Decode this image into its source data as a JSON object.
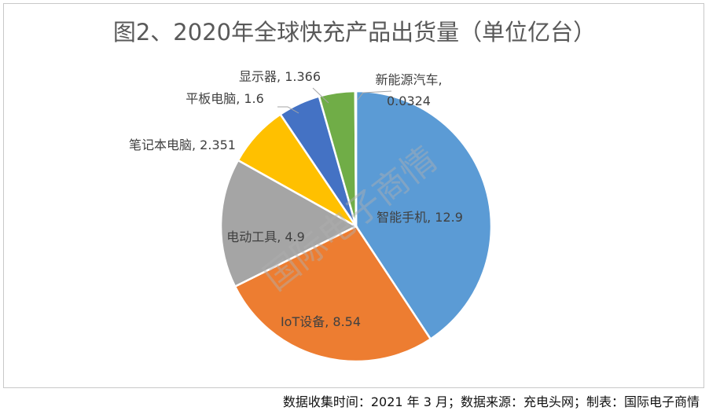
{
  "chart_data": {
    "type": "pie",
    "title": "图2、2020年全球快充产品出货量（单位亿台）",
    "unit": "亿台",
    "slices": [
      {
        "name": "智能手机",
        "value": 12.9,
        "label": "智能手机, 12.9",
        "color": "#5b9bd5"
      },
      {
        "name": "IoT设备",
        "value": 8.54,
        "label": "IoT设备, 8.54",
        "color": "#ed7d31"
      },
      {
        "name": "电动工具",
        "value": 4.9,
        "label": "电动工具, 4.9",
        "color": "#a5a5a5"
      },
      {
        "name": "笔记本电脑",
        "value": 2.351,
        "label": "笔记本电脑, 2.351",
        "color": "#ffc000"
      },
      {
        "name": "平板电脑",
        "value": 1.6,
        "label": "平板电脑, 1.6",
        "color": "#4472c4"
      },
      {
        "name": "显示器",
        "value": 1.366,
        "label": "显示器, 1.366",
        "color": "#70ad47"
      },
      {
        "name": "新能源汽车",
        "value": 0.0324,
        "label": "新能源汽车,\n0.0324",
        "color": "#264478"
      }
    ]
  },
  "source_note": "数据收集时间：2021 年 3 月；数据来源：充电头网；制表：国际电子商情",
  "watermark": "国际电子商情"
}
